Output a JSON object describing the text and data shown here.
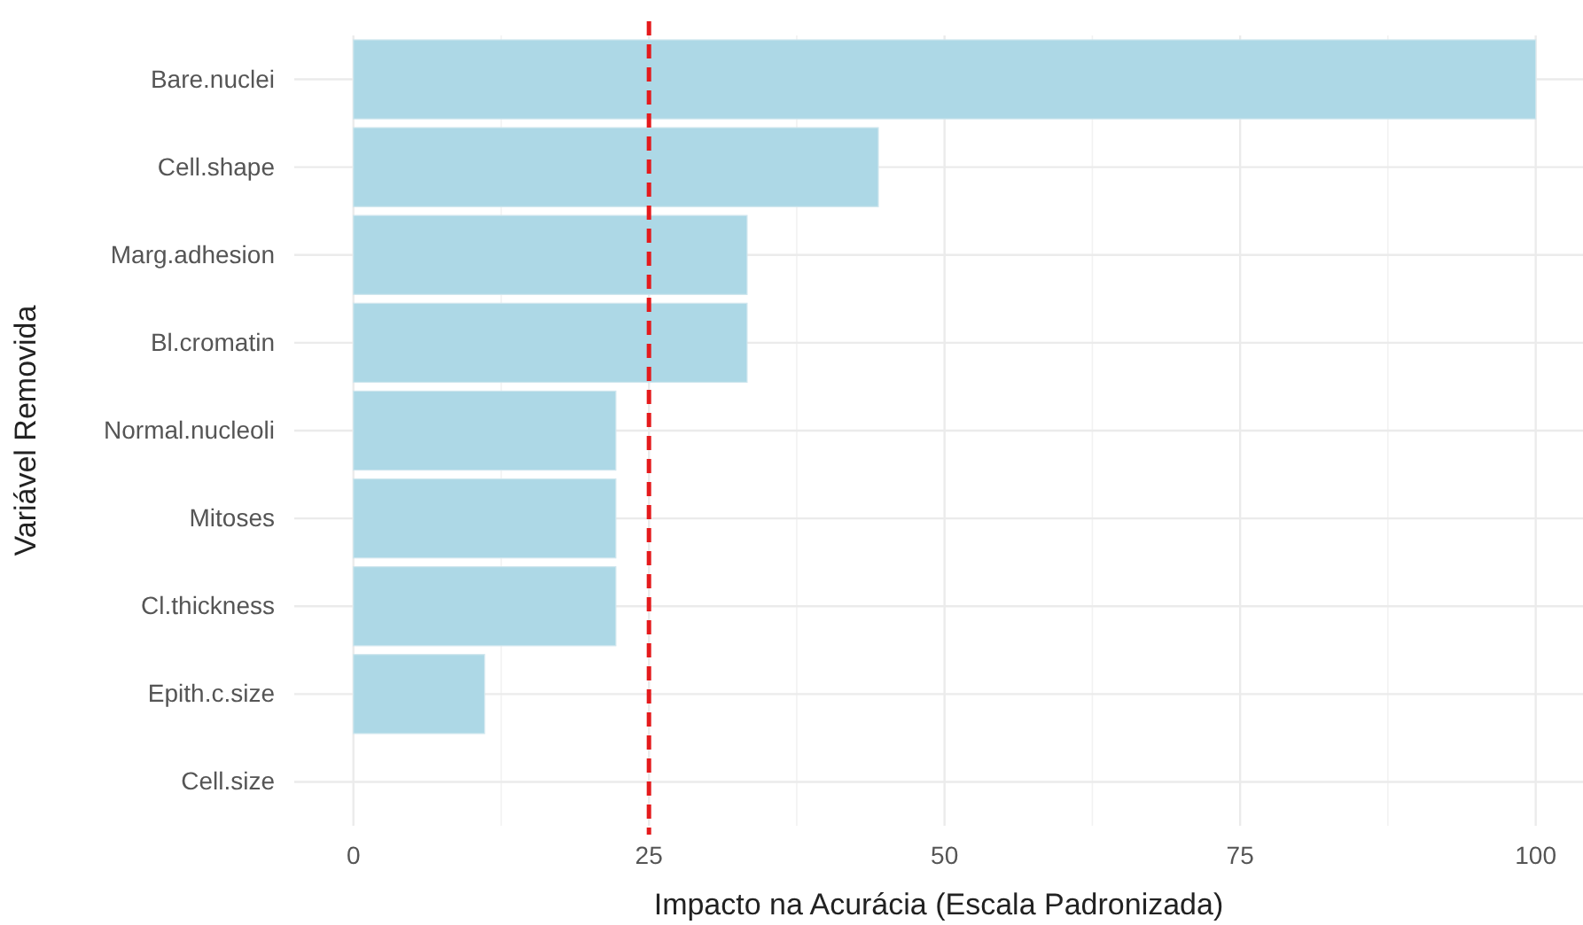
{
  "chart_data": {
    "type": "bar",
    "orientation": "horizontal",
    "categories": [
      "Bare.nuclei",
      "Cell.shape",
      "Marg.adhesion",
      "Bl.cromatin",
      "Normal.nucleoli",
      "Mitoses",
      "Cl.thickness",
      "Epith.c.size",
      "Cell.size"
    ],
    "values": [
      100,
      44.4,
      33.3,
      33.3,
      22.2,
      22.2,
      22.2,
      11.1,
      0
    ],
    "color": "#add8e6",
    "xlim": [
      -5,
      104
    ],
    "xticks": [
      0,
      25,
      50,
      75,
      100
    ],
    "xlabel": "Impacto na Acurácia (Escala Padronizada)",
    "ylabel": "Variável Removida",
    "grid": true,
    "ref_lines": [
      {
        "axis": "x",
        "value": 25,
        "color": "#e41a1c",
        "line_style": "dashed"
      }
    ]
  }
}
